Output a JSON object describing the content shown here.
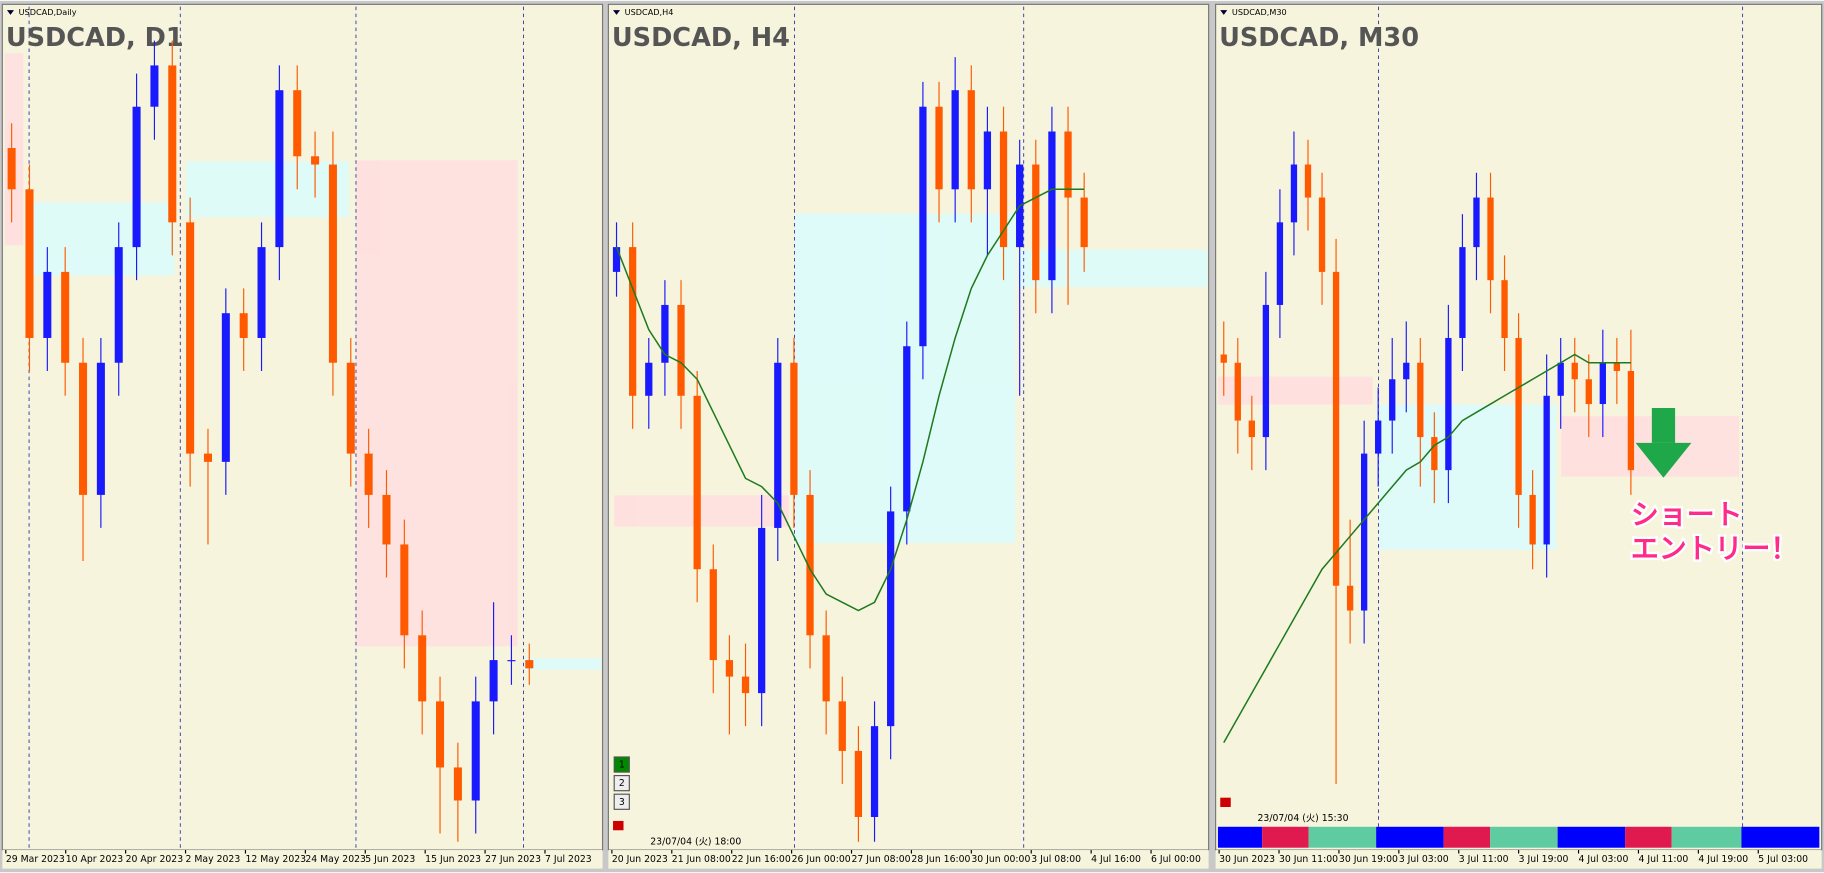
{
  "panels": [
    {
      "window_label": "USDCAD,Daily",
      "title": "USDCAD, D1",
      "ylim": [
        0,
        100
      ],
      "up_color": "#1a1aff",
      "down_color": "#ff5a00",
      "x_labels": [
        "29 Mar 2023",
        "10 Apr 2023",
        "20 Apr 2023",
        "2 May 2023",
        "12 May 2023",
        "24 May 2023",
        "5 Jun 2023",
        "15 Jun 2023",
        "27 Jun 2023",
        "7 Jul 2023"
      ],
      "ohlc": [
        [
          85,
          88,
          76,
          80
        ],
        [
          80,
          83,
          58,
          62
        ],
        [
          62,
          73,
          58,
          70
        ],
        [
          70,
          73,
          55,
          59
        ],
        [
          59,
          62,
          35,
          43
        ],
        [
          43,
          62,
          39,
          59
        ],
        [
          59,
          76,
          55,
          73
        ],
        [
          73,
          94,
          69,
          90
        ],
        [
          90,
          98,
          86,
          95
        ],
        [
          95,
          98,
          72,
          76
        ],
        [
          76,
          79,
          44,
          48
        ],
        [
          48,
          51,
          37,
          47
        ],
        [
          47,
          68,
          43,
          65
        ],
        [
          65,
          68,
          58,
          62
        ],
        [
          62,
          76,
          58,
          73
        ],
        [
          73,
          95,
          69,
          92
        ],
        [
          92,
          95,
          80,
          84
        ],
        [
          84,
          87,
          79,
          83
        ],
        [
          83,
          87,
          55,
          59
        ],
        [
          59,
          62,
          44,
          48
        ],
        [
          48,
          51,
          39,
          43
        ],
        [
          43,
          46,
          33,
          37
        ],
        [
          37,
          40,
          22,
          26
        ],
        [
          26,
          29,
          14,
          18
        ],
        [
          18,
          21,
          2,
          10
        ],
        [
          10,
          13,
          1,
          6
        ],
        [
          6,
          21,
          2,
          18
        ],
        [
          18,
          30,
          14,
          23
        ],
        [
          23,
          26,
          20,
          23
        ],
        [
          23,
          25,
          20,
          22
        ]
      ]
    },
    {
      "window_label": "USDCAD,H4",
      "title": "USDCAD, H4",
      "ylim": [
        0,
        100
      ],
      "up_color": "#1a1aff",
      "down_color": "#ff5a00",
      "ma_color": "#1e7a1e",
      "timestamp": "23/07/04 (火) 18:00",
      "buttons": [
        "1",
        "2",
        "3"
      ],
      "x_labels": [
        "20 Jun 2023",
        "21 Jun 08:00",
        "22 Jun 16:00",
        "26 Jun 00:00",
        "27 Jun 08:00",
        "28 Jun 16:00",
        "30 Jun 00:00",
        "3 Jul 08:00",
        "4 Jul 16:00",
        "6 Jul 00:00"
      ],
      "ohlc": [
        [
          70,
          76,
          67,
          73
        ],
        [
          73,
          76,
          51,
          55
        ],
        [
          55,
          62,
          51,
          59
        ],
        [
          59,
          69,
          55,
          66
        ],
        [
          66,
          69,
          51,
          55
        ],
        [
          55,
          58,
          30,
          34
        ],
        [
          34,
          37,
          19,
          23
        ],
        [
          23,
          26,
          14,
          21
        ],
        [
          21,
          25,
          15,
          19
        ],
        [
          19,
          43,
          15,
          39
        ],
        [
          39,
          62,
          35,
          59
        ],
        [
          59,
          62,
          39,
          43
        ],
        [
          43,
          46,
          22,
          26
        ],
        [
          26,
          29,
          14,
          18
        ],
        [
          18,
          21,
          8,
          12
        ],
        [
          12,
          15,
          1,
          4
        ],
        [
          4,
          18,
          1,
          15
        ],
        [
          15,
          44,
          11,
          41
        ],
        [
          41,
          64,
          37,
          61
        ],
        [
          61,
          93,
          57,
          90
        ],
        [
          90,
          93,
          76,
          80
        ],
        [
          80,
          96,
          76,
          92
        ],
        [
          92,
          95,
          76,
          80
        ],
        [
          80,
          90,
          72,
          87
        ],
        [
          87,
          90,
          69,
          73
        ],
        [
          73,
          86,
          55,
          83
        ],
        [
          83,
          86,
          65,
          69
        ],
        [
          69,
          90,
          65,
          87
        ],
        [
          87,
          90,
          66,
          79
        ],
        [
          79,
          82,
          70,
          73
        ]
      ],
      "ma": [
        73,
        68,
        63,
        60,
        59,
        57,
        53,
        49,
        45,
        44,
        42,
        38,
        34,
        31,
        30,
        29,
        30,
        34,
        40,
        47,
        55,
        62,
        68,
        72,
        75,
        78,
        79,
        80,
        80,
        80
      ]
    },
    {
      "window_label": "USDCAD,M30",
      "title": "USDCAD, M30",
      "ylim": [
        0,
        100
      ],
      "up_color": "#1a1aff",
      "down_color": "#ff5a00",
      "ma_color": "#1e7a1e",
      "timestamp": "23/07/04 (火) 15:30",
      "x_labels": [
        "30 Jun 2023",
        "30 Jun 11:00",
        "30 Jun 19:00",
        "3 Jul 03:00",
        "3 Jul 11:00",
        "3 Jul 19:00",
        "4 Jul 03:00",
        "4 Jul 11:00",
        "4 Jul 19:00",
        "5 Jul 03:00"
      ],
      "ohlc": [
        [
          60,
          64,
          55,
          59
        ],
        [
          59,
          62,
          48,
          52
        ],
        [
          52,
          55,
          46,
          50
        ],
        [
          50,
          70,
          46,
          66
        ],
        [
          66,
          80,
          62,
          76
        ],
        [
          76,
          87,
          72,
          83
        ],
        [
          83,
          86,
          75,
          79
        ],
        [
          79,
          82,
          66,
          70
        ],
        [
          70,
          74,
          8,
          32
        ],
        [
          32,
          40,
          25,
          29
        ],
        [
          29,
          52,
          25,
          48
        ],
        [
          48,
          56,
          44,
          52
        ],
        [
          52,
          62,
          48,
          57
        ],
        [
          57,
          64,
          53,
          59
        ],
        [
          59,
          62,
          44,
          50
        ],
        [
          50,
          53,
          42,
          46
        ],
        [
          46,
          66,
          42,
          62
        ],
        [
          62,
          77,
          58,
          73
        ],
        [
          73,
          82,
          69,
          79
        ],
        [
          79,
          82,
          65,
          69
        ],
        [
          69,
          72,
          58,
          62
        ],
        [
          62,
          65,
          39,
          43
        ],
        [
          43,
          46,
          34,
          37
        ],
        [
          37,
          60,
          33,
          55
        ],
        [
          55,
          62,
          51,
          59
        ],
        [
          59,
          62,
          53,
          57
        ],
        [
          57,
          60,
          50,
          54
        ],
        [
          54,
          63,
          50,
          59
        ],
        [
          59,
          62,
          54,
          58
        ],
        [
          58,
          63,
          43,
          46
        ]
      ],
      "ma": [
        13,
        16,
        19,
        22,
        25,
        28,
        31,
        34,
        36,
        38,
        40,
        42,
        44,
        46,
        47,
        49,
        50,
        52,
        53,
        54,
        55,
        56,
        57,
        58,
        59,
        60,
        59,
        59,
        59,
        59
      ]
    }
  ],
  "annotation": {
    "line1": "ショート",
    "line2": "エントリー！"
  }
}
